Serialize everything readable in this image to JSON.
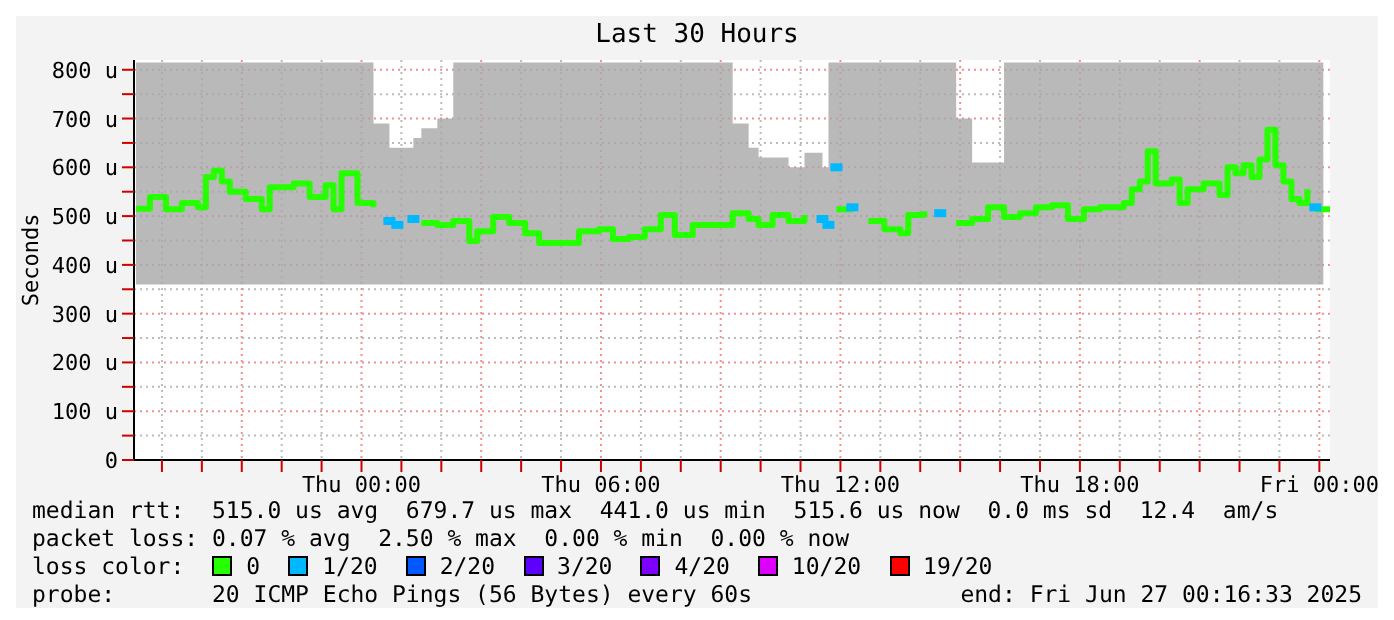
{
  "chart_data": {
    "type": "step",
    "title": "Last 30 Hours",
    "ylabel": "Seconds",
    "legend_title": "loss color:",
    "legend": "bottom",
    "grid": true,
    "xlim": [
      "2025-06-25T18:18",
      "2025-06-27T00:16"
    ],
    "xticks": [
      {
        "value": "2025-06-25T19:00",
        "label": null
      },
      {
        "value": "2025-06-25T20:00",
        "label": null
      },
      {
        "value": "2025-06-25T21:00",
        "label": null
      },
      {
        "value": "2025-06-25T22:00",
        "label": null
      },
      {
        "value": "2025-06-25T23:00",
        "label": null
      },
      {
        "value": "2025-06-26T00:00",
        "label": "Thu 00:00"
      },
      {
        "value": "2025-06-26T01:00",
        "label": null
      },
      {
        "value": "2025-06-26T02:00",
        "label": null
      },
      {
        "value": "2025-06-26T03:00",
        "label": null
      },
      {
        "value": "2025-06-26T04:00",
        "label": null
      },
      {
        "value": "2025-06-26T05:00",
        "label": null
      },
      {
        "value": "2025-06-26T06:00",
        "label": "Thu 06:00"
      },
      {
        "value": "2025-06-26T07:00",
        "label": null
      },
      {
        "value": "2025-06-26T08:00",
        "label": null
      },
      {
        "value": "2025-06-26T09:00",
        "label": null
      },
      {
        "value": "2025-06-26T10:00",
        "label": null
      },
      {
        "value": "2025-06-26T11:00",
        "label": null
      },
      {
        "value": "2025-06-26T12:00",
        "label": "Thu 12:00"
      },
      {
        "value": "2025-06-26T13:00",
        "label": null
      },
      {
        "value": "2025-06-26T14:00",
        "label": null
      },
      {
        "value": "2025-06-26T15:00",
        "label": null
      },
      {
        "value": "2025-06-26T16:00",
        "label": null
      },
      {
        "value": "2025-06-26T17:00",
        "label": null
      },
      {
        "value": "2025-06-26T18:00",
        "label": "Thu 18:00"
      },
      {
        "value": "2025-06-26T19:00",
        "label": null
      },
      {
        "value": "2025-06-26T20:00",
        "label": null
      },
      {
        "value": "2025-06-26T21:00",
        "label": null
      },
      {
        "value": "2025-06-26T22:00",
        "label": null
      },
      {
        "value": "2025-06-26T23:00",
        "label": null
      },
      {
        "value": "2025-06-27T00:00",
        "label": "Fri 00:00"
      }
    ],
    "ylim": [
      0,
      820
    ],
    "yticks": [
      0,
      {
        "value": 50,
        "label": null
      },
      {
        "value": 100,
        "label": "100 u"
      },
      {
        "value": 150,
        "label": null
      },
      {
        "value": 200,
        "label": "200 u"
      },
      {
        "value": 250,
        "label": null
      },
      {
        "value": 300,
        "label": "300 u"
      },
      {
        "value": 350,
        "label": null
      },
      {
        "value": 400,
        "label": "400 u"
      },
      {
        "value": 450,
        "label": null
      },
      {
        "value": 500,
        "label": "500 u"
      },
      {
        "value": 550,
        "label": null
      },
      {
        "value": 600,
        "label": "600 u"
      },
      {
        "value": 650,
        "label": null
      },
      {
        "value": 700,
        "label": "700 u"
      },
      {
        "value": 750,
        "label": null
      },
      {
        "value": 800,
        "label": "800 u"
      }
    ],
    "x": [
      "2025-06-25T18:21",
      "2025-06-25T18:42",
      "2025-06-25T19:06",
      "2025-06-25T19:30",
      "2025-06-25T19:54",
      "2025-06-25T20:06",
      "2025-06-25T20:18",
      "2025-06-25T20:30",
      "2025-06-25T20:42",
      "2025-06-25T21:06",
      "2025-06-25T21:30",
      "2025-06-25T21:42",
      "2025-06-25T22:06",
      "2025-06-25T22:18",
      "2025-06-25T22:42",
      "2025-06-25T23:06",
      "2025-06-25T23:18",
      "2025-06-25T23:30",
      "2025-06-25T23:54",
      "2025-06-26T00:18",
      "2025-06-26T00:42",
      "2025-06-26T00:54",
      "2025-06-26T01:18",
      "2025-06-26T01:30",
      "2025-06-26T01:54",
      "2025-06-26T02:18",
      "2025-06-26T02:42",
      "2025-06-26T02:54",
      "2025-06-26T03:18",
      "2025-06-26T03:42",
      "2025-06-26T04:06",
      "2025-06-26T04:27",
      "2025-06-26T04:57",
      "2025-06-26T05:27",
      "2025-06-26T05:57",
      "2025-06-26T06:18",
      "2025-06-26T06:42",
      "2025-06-26T07:06",
      "2025-06-26T07:30",
      "2025-06-26T07:51",
      "2025-06-26T08:18",
      "2025-06-26T08:42",
      "2025-06-26T09:18",
      "2025-06-26T09:42",
      "2025-06-26T09:57",
      "2025-06-26T10:18",
      "2025-06-26T10:42",
      "2025-06-26T11:06",
      "2025-06-26T11:33",
      "2025-06-26T11:42",
      "2025-06-26T11:54",
      "2025-06-26T12:06",
      "2025-06-26T12:18",
      "2025-06-26T12:42",
      "2025-06-26T13:06",
      "2025-06-26T13:30",
      "2025-06-26T13:42",
      "2025-06-26T14:06",
      "2025-06-26T14:30",
      "2025-06-26T14:54",
      "2025-06-26T15:18",
      "2025-06-26T15:42",
      "2025-06-26T16:06",
      "2025-06-26T16:30",
      "2025-06-26T16:54",
      "2025-06-26T17:18",
      "2025-06-26T17:42",
      "2025-06-26T18:06",
      "2025-06-26T18:30",
      "2025-06-26T18:54",
      "2025-06-26T19:06",
      "2025-06-26T19:18",
      "2025-06-26T19:30",
      "2025-06-26T19:42",
      "2025-06-26T19:54",
      "2025-06-26T20:18",
      "2025-06-26T20:30",
      "2025-06-26T20:42",
      "2025-06-26T21:06",
      "2025-06-26T21:30",
      "2025-06-26T21:42",
      "2025-06-26T21:54",
      "2025-06-26T22:06",
      "2025-06-26T22:18",
      "2025-06-26T22:30",
      "2025-06-26T22:42",
      "2025-06-26T22:54",
      "2025-06-26T23:06",
      "2025-06-26T23:18",
      "2025-06-26T23:30",
      "2025-06-26T23:42",
      "2025-06-26T23:54",
      "2025-06-27T00:06"
    ],
    "series": [
      {
        "name": "0",
        "color": "#26ff00",
        "values": [
          515,
          539,
          514,
          527,
          518,
          580,
          593,
          571,
          550,
          535,
          514,
          559,
          559,
          567,
          539,
          563,
          514,
          588,
          527,
          518,
          null,
          null,
          null,
          486,
          482,
          490,
          449,
          469,
          498,
          486,
          465,
          445,
          445,
          469,
          473,
          453,
          457,
          473,
          502,
          461,
          482,
          482,
          506,
          494,
          482,
          502,
          490,
          502,
          null,
          null,
          null,
          514,
          null,
          490,
          473,
          465,
          502,
          510,
          null,
          486,
          494,
          518,
          498,
          506,
          518,
          522,
          494,
          514,
          518,
          518,
          527,
          555,
          571,
          633,
          567,
          575,
          527,
          555,
          567,
          543,
          600,
          588,
          604,
          580,
          616,
          677,
          604,
          571,
          535,
          527,
          555,
          null,
          514
        ],
        "lower": [
          360,
          360,
          360,
          360,
          360,
          360,
          360,
          360,
          360,
          360,
          360,
          360,
          360,
          360,
          360,
          360,
          360,
          360,
          360,
          360,
          360,
          360,
          360,
          360,
          360,
          360,
          360,
          360,
          360,
          360,
          360,
          360,
          360,
          360,
          360,
          360,
          360,
          360,
          360,
          360,
          360,
          360,
          360,
          360,
          360,
          360,
          360,
          360,
          360,
          360,
          360,
          360,
          360,
          360,
          360,
          360,
          360,
          360,
          360,
          360,
          360,
          360,
          360,
          360,
          360,
          360,
          360,
          360,
          360,
          360,
          360,
          360,
          360,
          360,
          360,
          360,
          360,
          360,
          360,
          360,
          360,
          360,
          360,
          360,
          360,
          360,
          360,
          360,
          360,
          360,
          360,
          360,
          360
        ],
        "upper": [
          815,
          815,
          815,
          815,
          815,
          815,
          815,
          815,
          815,
          815,
          815,
          815,
          815,
          815,
          815,
          815,
          815,
          815,
          815,
          690,
          640,
          640,
          660,
          680,
          700,
          815,
          815,
          815,
          815,
          815,
          815,
          815,
          815,
          815,
          815,
          815,
          815,
          815,
          815,
          815,
          815,
          815,
          690,
          640,
          620,
          620,
          600,
          630,
          600,
          815,
          815,
          815,
          815,
          815,
          815,
          815,
          815,
          815,
          815,
          700,
          610,
          610,
          815,
          815,
          815,
          815,
          815,
          815,
          815,
          815,
          815,
          815,
          815,
          815,
          815,
          815,
          815,
          815,
          815,
          815,
          815,
          815,
          815,
          815,
          815,
          815,
          815,
          815,
          815,
          815,
          815,
          815,
          815
        ]
      },
      {
        "name": "1/20",
        "type": "scatter",
        "marker": "square",
        "color": "#00b8ff",
        "x": [
          "2025-06-26T00:42",
          "2025-06-26T00:54",
          "2025-06-26T01:18",
          "2025-06-26T11:33",
          "2025-06-26T11:42",
          "2025-06-26T11:54",
          "2025-06-26T12:18",
          "2025-06-26T14:30",
          "2025-06-26T23:54"
        ],
        "values": [
          490,
          482,
          494,
          494,
          482,
          600,
          518,
          506,
          518
        ]
      },
      {
        "name": "2/20",
        "type": "scatter",
        "color": "#0059ff",
        "values": [
          null,
          null,
          null,
          null,
          null,
          null,
          null,
          null,
          null,
          null,
          null,
          null,
          null,
          null,
          null,
          null,
          null,
          null,
          null,
          null,
          null,
          null,
          null,
          null,
          null,
          null,
          null,
          null,
          null,
          null,
          null,
          null,
          null,
          null,
          null,
          null,
          null,
          null,
          null,
          null,
          null,
          null,
          null,
          null,
          null,
          null,
          null,
          null,
          null,
          null,
          null,
          null,
          null,
          null,
          null,
          null,
          null,
          null,
          null,
          null,
          null,
          null,
          null,
          null,
          null,
          null,
          null,
          null,
          null,
          null,
          null,
          null,
          null,
          null,
          null,
          null,
          null,
          null,
          null,
          null,
          null,
          null,
          null,
          null,
          null,
          null,
          null,
          null,
          null,
          null,
          null,
          null,
          null
        ]
      },
      {
        "name": "3/20",
        "type": "scatter",
        "color": "#5e00ff",
        "values": [
          null,
          null,
          null,
          null,
          null,
          null,
          null,
          null,
          null,
          null,
          null,
          null,
          null,
          null,
          null,
          null,
          null,
          null,
          null,
          null,
          null,
          null,
          null,
          null,
          null,
          null,
          null,
          null,
          null,
          null,
          null,
          null,
          null,
          null,
          null,
          null,
          null,
          null,
          null,
          null,
          null,
          null,
          null,
          null,
          null,
          null,
          null,
          null,
          null,
          null,
          null,
          null,
          null,
          null,
          null,
          null,
          null,
          null,
          null,
          null,
          null,
          null,
          null,
          null,
          null,
          null,
          null,
          null,
          null,
          null,
          null,
          null,
          null,
          null,
          null,
          null,
          null,
          null,
          null,
          null,
          null,
          null,
          null,
          null,
          null,
          null,
          null,
          null,
          null,
          null,
          null,
          null,
          null
        ]
      },
      {
        "name": "4/20",
        "type": "scatter",
        "color": "#7e00ff",
        "values": [
          null,
          null,
          null,
          null,
          null,
          null,
          null,
          null,
          null,
          null,
          null,
          null,
          null,
          null,
          null,
          null,
          null,
          null,
          null,
          null,
          null,
          null,
          null,
          null,
          null,
          null,
          null,
          null,
          null,
          null,
          null,
          null,
          null,
          null,
          null,
          null,
          null,
          null,
          null,
          null,
          null,
          null,
          null,
          null,
          null,
          null,
          null,
          null,
          null,
          null,
          null,
          null,
          null,
          null,
          null,
          null,
          null,
          null,
          null,
          null,
          null,
          null,
          null,
          null,
          null,
          null,
          null,
          null,
          null,
          null,
          null,
          null,
          null,
          null,
          null,
          null,
          null,
          null,
          null,
          null,
          null,
          null,
          null,
          null,
          null,
          null,
          null,
          null,
          null,
          null,
          null,
          null,
          null
        ]
      },
      {
        "name": "10/20",
        "type": "scatter",
        "color": "#dd00ff",
        "values": [
          null,
          null,
          null,
          null,
          null,
          null,
          null,
          null,
          null,
          null,
          null,
          null,
          null,
          null,
          null,
          null,
          null,
          null,
          null,
          null,
          null,
          null,
          null,
          null,
          null,
          null,
          null,
          null,
          null,
          null,
          null,
          null,
          null,
          null,
          null,
          null,
          null,
          null,
          null,
          null,
          null,
          null,
          null,
          null,
          null,
          null,
          null,
          null,
          null,
          null,
          null,
          null,
          null,
          null,
          null,
          null,
          null,
          null,
          null,
          null,
          null,
          null,
          null,
          null,
          null,
          null,
          null,
          null,
          null,
          null,
          null,
          null,
          null,
          null,
          null,
          null,
          null,
          null,
          null,
          null,
          null,
          null,
          null,
          null,
          null,
          null,
          null,
          null,
          null,
          null,
          null,
          null,
          null
        ]
      },
      {
        "name": "19/20",
        "type": "scatter",
        "color": "#ff0000",
        "values": [
          null,
          null,
          null,
          null,
          null,
          null,
          null,
          null,
          null,
          null,
          null,
          null,
          null,
          null,
          null,
          null,
          null,
          null,
          null,
          null,
          null,
          null,
          null,
          null,
          null,
          null,
          null,
          null,
          null,
          null,
          null,
          null,
          null,
          null,
          null,
          null,
          null,
          null,
          null,
          null,
          null,
          null,
          null,
          null,
          null,
          null,
          null,
          null,
          null,
          null,
          null,
          null,
          null,
          null,
          null,
          null,
          null,
          null,
          null,
          null,
          null,
          null,
          null,
          null,
          null,
          null,
          null,
          null,
          null,
          null,
          null,
          null,
          null,
          null,
          null,
          null,
          null,
          null,
          null,
          null,
          null,
          null,
          null,
          null,
          null,
          null,
          null,
          null,
          null,
          null,
          null,
          null,
          null
        ]
      }
    ],
    "annotations": [
      "median rtt:  515.0 us avg  679.7 us max  441.0 us min  515.6 us now  0.0 ms sd  12.4  am/s",
      "packet loss: 0.07 % avg  2.50 % max  0.00 % min  0.00 % now",
      "probe:       20 ICMP Echo Pings (56 Bytes) every 60s",
      "end: Fri Jun 27 00:16:33 2025"
    ]
  }
}
